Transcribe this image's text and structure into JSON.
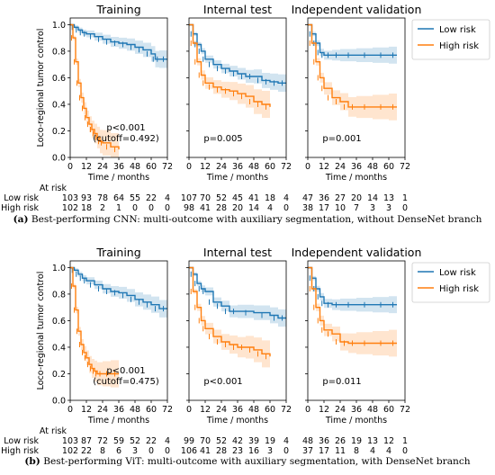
{
  "chart_data": [
    {
      "type": "line",
      "panel_label": "(a)",
      "caption": "Best-performing CNN: multi-outcome with auxiliary segmentation, without DenseNet branch",
      "ylabel": "Loco-regional tumor control",
      "xlabel": "Time / months",
      "xlim": [
        0,
        72
      ],
      "ylim": [
        0,
        1.05
      ],
      "xticks": [
        0,
        12,
        24,
        36,
        48,
        60,
        72
      ],
      "yticks": [
        "0.0",
        "0.2",
        "0.4",
        "0.6",
        "0.8",
        "1.0"
      ],
      "grid": false,
      "legend": {
        "position": "right",
        "entries": [
          "Low risk",
          "High risk"
        ]
      },
      "colors": {
        "low": "#1f77b4",
        "high": "#ff7f0e"
      },
      "at_risk_label": "At risk",
      "risk_groups": [
        "Low risk",
        "High risk"
      ],
      "subplots": [
        {
          "title": "Training",
          "annotation": [
            "p<0.001",
            "(cutoff=0.492)"
          ],
          "series": [
            {
              "name": "Low risk",
              "x": [
                0,
                3,
                6,
                9,
                12,
                18,
                24,
                30,
                36,
                42,
                48,
                54,
                60,
                63,
                66,
                72
              ],
              "y": [
                1.0,
                0.98,
                0.96,
                0.94,
                0.93,
                0.91,
                0.89,
                0.87,
                0.86,
                0.85,
                0.83,
                0.81,
                0.78,
                0.74,
                0.74,
                0.74
              ]
            },
            {
              "name": "High risk",
              "x": [
                0,
                2,
                4,
                6,
                8,
                10,
                12,
                14,
                16,
                18,
                20,
                22,
                24,
                30,
                36
              ],
              "y": [
                1.0,
                0.9,
                0.72,
                0.56,
                0.45,
                0.37,
                0.3,
                0.25,
                0.21,
                0.18,
                0.15,
                0.12,
                0.11,
                0.08,
                0.06
              ]
            }
          ],
          "at_risk": {
            "Low risk": [
              103,
              93,
              78,
              64,
              55,
              22,
              4
            ],
            "High risk": [
              102,
              18,
              2,
              1,
              0,
              0,
              0
            ]
          }
        },
        {
          "title": "Internal test",
          "annotation": [
            "p=0.005"
          ],
          "series": [
            {
              "name": "Low risk",
              "x": [
                0,
                3,
                6,
                9,
                12,
                18,
                24,
                30,
                36,
                42,
                48,
                54,
                60,
                66,
                72
              ],
              "y": [
                1.0,
                0.93,
                0.85,
                0.8,
                0.74,
                0.7,
                0.67,
                0.65,
                0.63,
                0.61,
                0.61,
                0.58,
                0.57,
                0.56,
                0.56
              ]
            },
            {
              "name": "High risk",
              "x": [
                0,
                3,
                6,
                9,
                12,
                18,
                24,
                30,
                36,
                42,
                48,
                54,
                60
              ],
              "y": [
                1.0,
                0.86,
                0.72,
                0.62,
                0.56,
                0.53,
                0.51,
                0.5,
                0.48,
                0.46,
                0.42,
                0.4,
                0.38
              ]
            }
          ],
          "at_risk": {
            "Low risk": [
              107,
              70,
              52,
              45,
              41,
              18,
              4
            ],
            "High risk": [
              98,
              41,
              28,
              20,
              14,
              4,
              0
            ]
          }
        },
        {
          "title": "Independent validation",
          "annotation": [
            "p=0.001"
          ],
          "series": [
            {
              "name": "Low risk",
              "x": [
                0,
                3,
                6,
                9,
                12,
                18,
                24,
                36,
                48,
                60,
                66
              ],
              "y": [
                1.0,
                0.93,
                0.86,
                0.79,
                0.77,
                0.77,
                0.77,
                0.77,
                0.77,
                0.77,
                0.77
              ]
            },
            {
              "name": "High risk",
              "x": [
                0,
                3,
                6,
                9,
                12,
                18,
                24,
                30,
                36,
                48,
                60,
                66
              ],
              "y": [
                1.0,
                0.86,
                0.72,
                0.6,
                0.52,
                0.45,
                0.42,
                0.38,
                0.38,
                0.38,
                0.38,
                0.38
              ]
            }
          ],
          "at_risk": {
            "Low risk": [
              47,
              36,
              27,
              20,
              14,
              13,
              1
            ],
            "High risk": [
              38,
              17,
              10,
              7,
              3,
              3,
              0
            ]
          }
        }
      ]
    },
    {
      "type": "line",
      "panel_label": "(b)",
      "caption": "Best-performing ViT: multi-outcome with auxiliary segmentation, with DenseNet branch",
      "ylabel": "Loco-regional tumor control",
      "xlabel": "Time / months",
      "xlim": [
        0,
        72
      ],
      "ylim": [
        0,
        1.05
      ],
      "xticks": [
        0,
        12,
        24,
        36,
        48,
        60,
        72
      ],
      "yticks": [
        "0.0",
        "0.2",
        "0.4",
        "0.6",
        "0.8",
        "1.0"
      ],
      "grid": false,
      "legend": {
        "position": "right",
        "entries": [
          "Low risk",
          "High risk"
        ]
      },
      "colors": {
        "low": "#1f77b4",
        "high": "#ff7f0e"
      },
      "at_risk_label": "At risk",
      "risk_groups": [
        "Low risk",
        "High risk"
      ],
      "subplots": [
        {
          "title": "Training",
          "annotation": [
            "p<0.001",
            "(cutoff=0.475)"
          ],
          "series": [
            {
              "name": "Low risk",
              "x": [
                0,
                3,
                6,
                9,
                12,
                18,
                24,
                30,
                36,
                42,
                48,
                54,
                60,
                66,
                72
              ],
              "y": [
                1.0,
                0.98,
                0.95,
                0.92,
                0.9,
                0.87,
                0.84,
                0.82,
                0.81,
                0.79,
                0.76,
                0.74,
                0.72,
                0.69,
                0.69
              ]
            },
            {
              "name": "High risk",
              "x": [
                0,
                2,
                4,
                6,
                8,
                10,
                12,
                14,
                16,
                18,
                20,
                24,
                30,
                36
              ],
              "y": [
                1.0,
                0.86,
                0.68,
                0.52,
                0.42,
                0.36,
                0.32,
                0.27,
                0.24,
                0.22,
                0.2,
                0.2,
                0.2,
                0.2
              ]
            }
          ],
          "at_risk": {
            "Low risk": [
              103,
              87,
              72,
              59,
              52,
              22,
              4
            ],
            "High risk": [
              102,
              22,
              8,
              6,
              3,
              0,
              0
            ]
          }
        },
        {
          "title": "Internal test",
          "annotation": [
            "p<0.001"
          ],
          "series": [
            {
              "name": "Low risk",
              "x": [
                0,
                3,
                6,
                9,
                12,
                18,
                24,
                30,
                36,
                48,
                60,
                66,
                72
              ],
              "y": [
                1.0,
                0.95,
                0.88,
                0.84,
                0.82,
                0.74,
                0.71,
                0.67,
                0.67,
                0.66,
                0.64,
                0.62,
                0.62
              ]
            },
            {
              "name": "High risk",
              "x": [
                0,
                3,
                6,
                9,
                12,
                18,
                24,
                30,
                36,
                42,
                48,
                54,
                60
              ],
              "y": [
                1.0,
                0.82,
                0.7,
                0.6,
                0.54,
                0.48,
                0.44,
                0.42,
                0.4,
                0.4,
                0.38,
                0.35,
                0.33
              ]
            }
          ],
          "at_risk": {
            "Low risk": [
              99,
              70,
              52,
              42,
              39,
              19,
              4
            ],
            "High risk": [
              106,
              41,
              28,
              23,
              16,
              3,
              0
            ]
          }
        },
        {
          "title": "Independent validation",
          "annotation": [
            "p=0.011"
          ],
          "series": [
            {
              "name": "Low risk",
              "x": [
                0,
                3,
                6,
                9,
                12,
                18,
                24,
                36,
                48,
                60,
                66
              ],
              "y": [
                1.0,
                0.92,
                0.84,
                0.78,
                0.73,
                0.72,
                0.72,
                0.72,
                0.72,
                0.72,
                0.72
              ]
            },
            {
              "name": "High risk",
              "x": [
                0,
                3,
                6,
                9,
                12,
                18,
                24,
                30,
                36,
                48,
                60,
                66
              ],
              "y": [
                1.0,
                0.84,
                0.7,
                0.6,
                0.53,
                0.5,
                0.44,
                0.43,
                0.43,
                0.43,
                0.43,
                0.43
              ]
            }
          ],
          "at_risk": {
            "Low risk": [
              48,
              36,
              26,
              19,
              13,
              12,
              1
            ],
            "High risk": [
              37,
              17,
              11,
              8,
              4,
              4,
              0
            ]
          }
        }
      ]
    }
  ]
}
